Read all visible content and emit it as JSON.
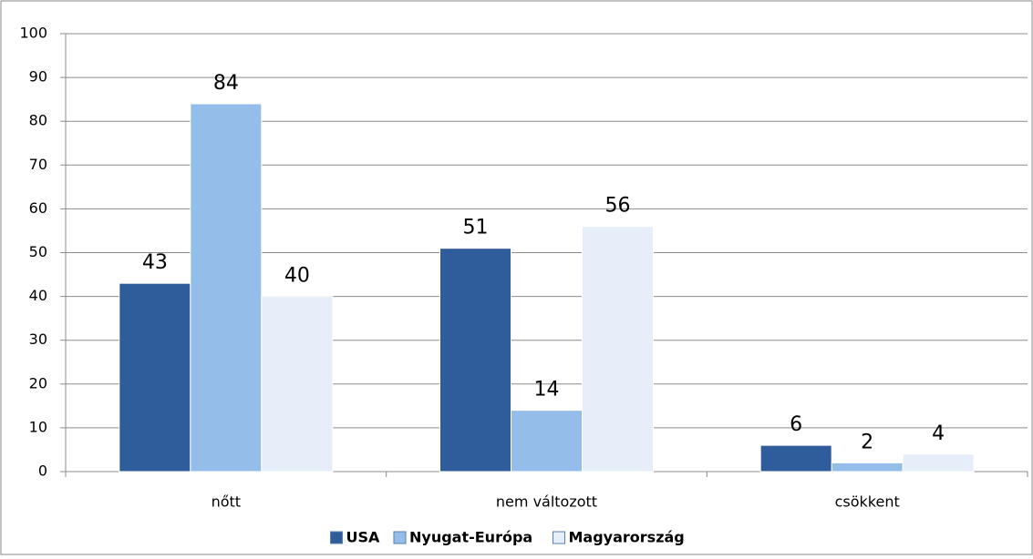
{
  "chart_data": {
    "type": "bar",
    "categories": [
      "nőtt",
      "nem változott",
      "csökkent"
    ],
    "series": [
      {
        "name": "USA",
        "color": "#2f5d9b",
        "values": [
          43,
          51,
          6
        ]
      },
      {
        "name": "Nyugat-Európa",
        "color": "#95bde9",
        "values": [
          84,
          14,
          2
        ]
      },
      {
        "name": "Magyarország",
        "color": "#e6eef9",
        "values": [
          40,
          56,
          4
        ]
      }
    ],
    "ylim": [
      0,
      100
    ],
    "yticks": [
      0,
      10,
      20,
      30,
      40,
      50,
      60,
      70,
      80,
      90,
      100
    ],
    "grid": true,
    "legend": "bottom"
  }
}
